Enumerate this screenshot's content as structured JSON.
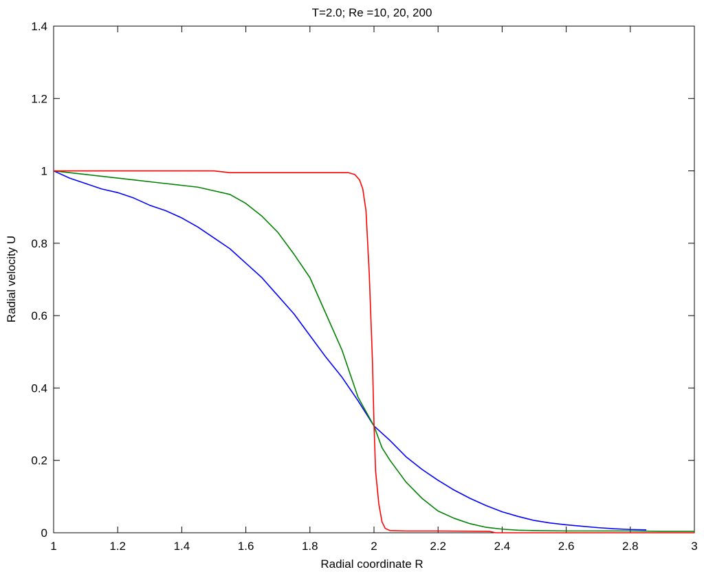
{
  "chart_data": {
    "type": "line",
    "title": "T=2.0;   Re =10, 20, 200",
    "xlabel": "Radial coordinate  R",
    "ylabel": "Radial velocity  U",
    "xlim": [
      1,
      3
    ],
    "ylim": [
      0,
      1.4
    ],
    "xticks": [
      1,
      1.2,
      1.4,
      1.6,
      1.8,
      2,
      2.2,
      2.4,
      2.6,
      2.8,
      3
    ],
    "xtick_labels": [
      "1",
      "1.2",
      "1.4",
      "1.6",
      "1.8",
      "2",
      "2.2",
      "2.4",
      "2.6",
      "2.8",
      "3"
    ],
    "yticks": [
      0,
      0.2,
      0.4,
      0.6,
      0.8,
      1,
      1.2,
      1.4
    ],
    "ytick_labels": [
      "0",
      "0.2",
      "0.4",
      "0.6",
      "0.8",
      "1",
      "1.2",
      "1.4"
    ],
    "grid": false,
    "series": [
      {
        "color": "#0000ff",
        "x": [
          1.0,
          1.05,
          1.1,
          1.15,
          1.2,
          1.25,
          1.3,
          1.35,
          1.4,
          1.45,
          1.5,
          1.55,
          1.6,
          1.65,
          1.7,
          1.75,
          1.8,
          1.85,
          1.9,
          1.95,
          2.0,
          2.05,
          2.1,
          2.15,
          2.2,
          2.25,
          2.3,
          2.35,
          2.4,
          2.45,
          2.5,
          2.55,
          2.6,
          2.65,
          2.7,
          2.75,
          2.8,
          2.85
        ],
        "y": [
          1.0,
          0.98,
          0.965,
          0.95,
          0.94,
          0.925,
          0.905,
          0.89,
          0.87,
          0.845,
          0.815,
          0.785,
          0.745,
          0.705,
          0.655,
          0.605,
          0.545,
          0.485,
          0.43,
          0.365,
          0.295,
          0.255,
          0.21,
          0.175,
          0.145,
          0.118,
          0.095,
          0.075,
          0.058,
          0.045,
          0.034,
          0.027,
          0.022,
          0.018,
          0.014,
          0.011,
          0.009,
          0.008
        ]
      },
      {
        "color": "#008000",
        "x": [
          1.0,
          1.05,
          1.1,
          1.15,
          1.2,
          1.25,
          1.3,
          1.35,
          1.4,
          1.45,
          1.5,
          1.55,
          1.6,
          1.65,
          1.7,
          1.75,
          1.8,
          1.85,
          1.9,
          1.95,
          2.0,
          2.025,
          2.05,
          2.1,
          2.15,
          2.2,
          2.25,
          2.3,
          2.35,
          2.4,
          2.45,
          2.5,
          2.6,
          2.7,
          2.8,
          2.9,
          3.0
        ],
        "y": [
          1.0,
          0.995,
          0.99,
          0.985,
          0.98,
          0.975,
          0.97,
          0.965,
          0.96,
          0.955,
          0.945,
          0.935,
          0.91,
          0.875,
          0.83,
          0.77,
          0.705,
          0.605,
          0.505,
          0.375,
          0.295,
          0.235,
          0.2,
          0.14,
          0.095,
          0.06,
          0.04,
          0.025,
          0.015,
          0.01,
          0.007,
          0.006,
          0.005,
          0.005,
          0.005,
          0.004,
          0.004
        ]
      },
      {
        "color": "#ff0000",
        "x": [
          1.0,
          1.5,
          1.55,
          1.9,
          1.92,
          1.94,
          1.955,
          1.965,
          1.975,
          1.985,
          1.995,
          2.0,
          2.005,
          2.015,
          2.025,
          2.035,
          2.05,
          2.1,
          2.2,
          2.36,
          2.38,
          2.6,
          3.0
        ],
        "y": [
          1.0,
          1.0,
          0.995,
          0.995,
          0.995,
          0.99,
          0.975,
          0.95,
          0.89,
          0.72,
          0.48,
          0.3,
          0.17,
          0.08,
          0.03,
          0.012,
          0.006,
          0.005,
          0.005,
          0.004,
          0.0,
          0.0,
          0.0
        ]
      }
    ]
  }
}
